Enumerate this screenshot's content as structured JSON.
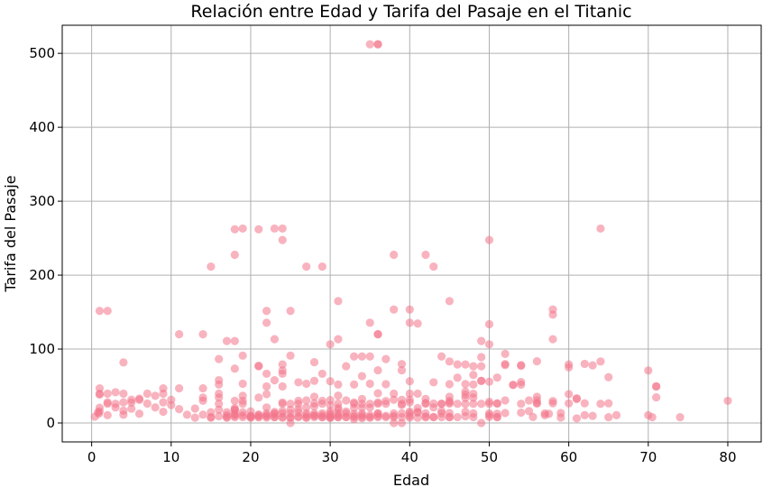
{
  "chart_data": {
    "type": "scatter",
    "title": "Relación entre Edad y Tarifa del Pasaje en el Titanic",
    "xlabel": "Edad",
    "ylabel": "Tarifa del Pasaje",
    "xlim": [
      -3.7,
      84.2
    ],
    "ylim": [
      -25.6,
      538.0
    ],
    "xticks": [
      0,
      10,
      20,
      30,
      40,
      50,
      60,
      70,
      80
    ],
    "yticks": [
      0,
      100,
      200,
      300,
      400,
      500
    ],
    "grid": true,
    "legend": "none",
    "point_color": "#f3758b",
    "point_opacity": 0.55,
    "points": [
      [
        35,
        512.3
      ],
      [
        36,
        512.3
      ],
      [
        36,
        512.3
      ],
      [
        18,
        262
      ],
      [
        19,
        263
      ],
      [
        21,
        262
      ],
      [
        23,
        263
      ],
      [
        24,
        263
      ],
      [
        24,
        247.5
      ],
      [
        50,
        247.5
      ],
      [
        64,
        263
      ],
      [
        18,
        227.5
      ],
      [
        15,
        211.5
      ],
      [
        27,
        211.5
      ],
      [
        29,
        211.5
      ],
      [
        38,
        227.5
      ],
      [
        42,
        227.5
      ],
      [
        43,
        211.5
      ],
      [
        31,
        164.9
      ],
      [
        45,
        164.9
      ],
      [
        40,
        153.5
      ],
      [
        1,
        151.6
      ],
      [
        2,
        151.6
      ],
      [
        22,
        151.6
      ],
      [
        25,
        151.6
      ],
      [
        38,
        153.5
      ],
      [
        58,
        153.5
      ],
      [
        58,
        146.5
      ],
      [
        22,
        135.6
      ],
      [
        35,
        135.6
      ],
      [
        40,
        135.6
      ],
      [
        41,
        134.5
      ],
      [
        50,
        133.6
      ],
      [
        11,
        120
      ],
      [
        14,
        120
      ],
      [
        36,
        120
      ],
      [
        36,
        120
      ],
      [
        23,
        113.3
      ],
      [
        31,
        113.3
      ],
      [
        58,
        113.3
      ],
      [
        17,
        110.9
      ],
      [
        18,
        110.9
      ],
      [
        49,
        110.9
      ],
      [
        50,
        106.4
      ],
      [
        30,
        106.4
      ],
      [
        52,
        93.5
      ],
      [
        19,
        91.1
      ],
      [
        34,
        90
      ],
      [
        44,
        90
      ],
      [
        35,
        90
      ],
      [
        25,
        91.1
      ],
      [
        33,
        90
      ],
      [
        37,
        86.5
      ],
      [
        45,
        83.2
      ],
      [
        56,
        83.5
      ],
      [
        64,
        83.2
      ],
      [
        4,
        81.9
      ],
      [
        16,
        86.5
      ],
      [
        39,
        79.7
      ],
      [
        21,
        77.3
      ],
      [
        24,
        79.2
      ],
      [
        32,
        76.7
      ],
      [
        48,
        76.7
      ],
      [
        47,
        79.2
      ],
      [
        54,
        78.3
      ],
      [
        52,
        79.7
      ],
      [
        60,
        79.2
      ],
      [
        62,
        80
      ],
      [
        63,
        77.9
      ],
      [
        28,
        82.2
      ],
      [
        21,
        76.7
      ],
      [
        60,
        75.2
      ],
      [
        18,
        73.5
      ],
      [
        24,
        71
      ],
      [
        36,
        71.3
      ],
      [
        39,
        71.3
      ],
      [
        48,
        65
      ],
      [
        51,
        61.4
      ],
      [
        65,
        61.9
      ],
      [
        70,
        71
      ],
      [
        24,
        66.6
      ],
      [
        34,
        63.4
      ],
      [
        28,
        57
      ],
      [
        29,
        66.6
      ],
      [
        19,
        53.1
      ],
      [
        22,
        66.6
      ],
      [
        33,
        52
      ],
      [
        35,
        53.1
      ],
      [
        37,
        52.5
      ],
      [
        31,
        52
      ],
      [
        45,
        52.5
      ],
      [
        47,
        52.6
      ],
      [
        23,
        57.8
      ],
      [
        26,
        55
      ],
      [
        40,
        56.5
      ],
      [
        27,
        53.1
      ],
      [
        49,
        57
      ],
      [
        50,
        55.9
      ],
      [
        53,
        51.5
      ],
      [
        54,
        55.4
      ],
      [
        56,
        26.6
      ],
      [
        16,
        57.9
      ],
      [
        16,
        52
      ],
      [
        22,
        49.5
      ],
      [
        24,
        49.5
      ],
      [
        30,
        56.5
      ],
      [
        9,
        46.9
      ],
      [
        11,
        46.9
      ],
      [
        1,
        46.9
      ],
      [
        14,
        46.9
      ],
      [
        16,
        39.7
      ],
      [
        6,
        31.3
      ],
      [
        71,
        49.5
      ],
      [
        71,
        34.7
      ],
      [
        43,
        55
      ],
      [
        44,
        26
      ],
      [
        45,
        27.7
      ],
      [
        38,
        39.7
      ],
      [
        33,
        27.7
      ],
      [
        1,
        39.7
      ],
      [
        1,
        38.5
      ],
      [
        2,
        39.7
      ],
      [
        3,
        41.6
      ],
      [
        4,
        39.7
      ],
      [
        2,
        27.9
      ],
      [
        4,
        27.9
      ],
      [
        5,
        31.4
      ],
      [
        8,
        36.8
      ],
      [
        9,
        39.7
      ],
      [
        10,
        31.4
      ],
      [
        3,
        26
      ],
      [
        3,
        21
      ],
      [
        2,
        26
      ],
      [
        1,
        20.6
      ],
      [
        1,
        15.7
      ],
      [
        0.8,
        14.5
      ],
      [
        0.4,
        8.5
      ],
      [
        0.9,
        12.5
      ],
      [
        2,
        10.5
      ],
      [
        4,
        16.7
      ],
      [
        4,
        11.1
      ],
      [
        5,
        19.3
      ],
      [
        6,
        12.5
      ],
      [
        5,
        27.7
      ],
      [
        6,
        33
      ],
      [
        7,
        39.7
      ],
      [
        7,
        26.3
      ],
      [
        8,
        21.1
      ],
      [
        9,
        15.2
      ],
      [
        9,
        27.9
      ],
      [
        10,
        24.2
      ],
      [
        11,
        18.8
      ],
      [
        12,
        11.2
      ],
      [
        13,
        19.5
      ],
      [
        13,
        7.2
      ],
      [
        14,
        11.2
      ],
      [
        14,
        30.1
      ],
      [
        14,
        34.4
      ],
      [
        15,
        7.2
      ],
      [
        15,
        14.5
      ],
      [
        15,
        8.0
      ],
      [
        16,
        9.2
      ],
      [
        16,
        18
      ],
      [
        16,
        26
      ],
      [
        16,
        34.4
      ],
      [
        17,
        7.9
      ],
      [
        17,
        10.5
      ],
      [
        17,
        14.5
      ],
      [
        17,
        7.2
      ],
      [
        18,
        7.8
      ],
      [
        18,
        11.5
      ],
      [
        18,
        13
      ],
      [
        18,
        18
      ],
      [
        18,
        20.2
      ],
      [
        18,
        9.5
      ],
      [
        18,
        17.8
      ],
      [
        18,
        30
      ],
      [
        19,
        7.9
      ],
      [
        19,
        10.5
      ],
      [
        19,
        26
      ],
      [
        19,
        30
      ],
      [
        19,
        36.8
      ],
      [
        19,
        14.5
      ],
      [
        20,
        7.9
      ],
      [
        20,
        9.8
      ],
      [
        20,
        7.0
      ],
      [
        20,
        15.7
      ],
      [
        20,
        9.2
      ],
      [
        21,
        7.7
      ],
      [
        21,
        11.5
      ],
      [
        21,
        8.4
      ],
      [
        21,
        10.5
      ],
      [
        21,
        34.4
      ],
      [
        22,
        7.3
      ],
      [
        22,
        9.0
      ],
      [
        22,
        10.5
      ],
      [
        22,
        13
      ],
      [
        22,
        21
      ],
      [
        22,
        39
      ],
      [
        23,
        7.8
      ],
      [
        23,
        8.0
      ],
      [
        23,
        13
      ],
      [
        23,
        15
      ],
      [
        23,
        11.5
      ],
      [
        24,
        8.1
      ],
      [
        24,
        13
      ],
      [
        24,
        16.1
      ],
      [
        24,
        7.1
      ],
      [
        24,
        26
      ],
      [
        24,
        27.7
      ],
      [
        25,
        7.1
      ],
      [
        25,
        7.7
      ],
      [
        25,
        13
      ],
      [
        25,
        26
      ],
      [
        25,
        0
      ],
      [
        25,
        17.8
      ],
      [
        26,
        7.9
      ],
      [
        26,
        8.7
      ],
      [
        26,
        14.5
      ],
      [
        26,
        18.8
      ],
      [
        26,
        26
      ],
      [
        26,
        30
      ],
      [
        27,
        6.9
      ],
      [
        27,
        7.8
      ],
      [
        27,
        13
      ],
      [
        27,
        10.5
      ],
      [
        27,
        21
      ],
      [
        27,
        30.5
      ],
      [
        28,
        7.9
      ],
      [
        28,
        9.5
      ],
      [
        28,
        13
      ],
      [
        28,
        10.5
      ],
      [
        28,
        22.5
      ],
      [
        28,
        26.6
      ],
      [
        28,
        35.5
      ],
      [
        29,
        7.8
      ],
      [
        29,
        7.9
      ],
      [
        29,
        10.5
      ],
      [
        29,
        13
      ],
      [
        29,
        26
      ],
      [
        29,
        30
      ],
      [
        30,
        6.9
      ],
      [
        30,
        7.2
      ],
      [
        30,
        8.1
      ],
      [
        30,
        10.5
      ],
      [
        30,
        13
      ],
      [
        30,
        16.1
      ],
      [
        30,
        24.2
      ],
      [
        30,
        31
      ],
      [
        31,
        7.8
      ],
      [
        31,
        7.9
      ],
      [
        31,
        10.5
      ],
      [
        31,
        13
      ],
      [
        31,
        18
      ],
      [
        31,
        20.5
      ],
      [
        31,
        26.3
      ],
      [
        31,
        37
      ],
      [
        32,
        7.9
      ],
      [
        32,
        8.1
      ],
      [
        32,
        13
      ],
      [
        32,
        15.5
      ],
      [
        32,
        30.5
      ],
      [
        33,
        5
      ],
      [
        33,
        7.9
      ],
      [
        33,
        9.5
      ],
      [
        33,
        12.3
      ],
      [
        33,
        26
      ],
      [
        33,
        20.5
      ],
      [
        34,
        6.5
      ],
      [
        34,
        8.1
      ],
      [
        34,
        10.5
      ],
      [
        34,
        13
      ],
      [
        34,
        21
      ],
      [
        34,
        26
      ],
      [
        34,
        32.5
      ],
      [
        35,
        7.1
      ],
      [
        35,
        8.1
      ],
      [
        35,
        10.5
      ],
      [
        35,
        21
      ],
      [
        35,
        26
      ],
      [
        36,
        7.9
      ],
      [
        36,
        9.5
      ],
      [
        36,
        12.9
      ],
      [
        36,
        13
      ],
      [
        36,
        26
      ],
      [
        36,
        27.7
      ],
      [
        36,
        40.1
      ],
      [
        37,
        7.9
      ],
      [
        37,
        9.6
      ],
      [
        37,
        26
      ],
      [
        37,
        29.7
      ],
      [
        38,
        0
      ],
      [
        38,
        7.9
      ],
      [
        38,
        9.6
      ],
      [
        38,
        13
      ],
      [
        38,
        31.4
      ],
      [
        39,
        0
      ],
      [
        39,
        7.9
      ],
      [
        39,
        13
      ],
      [
        39,
        26
      ],
      [
        39,
        24.2
      ],
      [
        39,
        31.3
      ],
      [
        40,
        7.2
      ],
      [
        40,
        9.5
      ],
      [
        40,
        13
      ],
      [
        40,
        15.5
      ],
      [
        40,
        31.4
      ],
      [
        40,
        27.7
      ],
      [
        40,
        39.7
      ],
      [
        41,
        7.1
      ],
      [
        41,
        14.1
      ],
      [
        41,
        15
      ],
      [
        41,
        20.2
      ],
      [
        41,
        39.7
      ],
      [
        42,
        7.6
      ],
      [
        42,
        8.7
      ],
      [
        42,
        13
      ],
      [
        42,
        26
      ],
      [
        42,
        27
      ],
      [
        42,
        32.5
      ],
      [
        43,
        7.9
      ],
      [
        43,
        8.1
      ],
      [
        43,
        21
      ],
      [
        43,
        26.3
      ],
      [
        44,
        7.9
      ],
      [
        44,
        16.1
      ],
      [
        44,
        13
      ],
      [
        44,
        26
      ],
      [
        45,
        7.8
      ],
      [
        45,
        8.1
      ],
      [
        45,
        13.5
      ],
      [
        45,
        26.3
      ],
      [
        45,
        30
      ],
      [
        45,
        35.5
      ],
      [
        46,
        7.9
      ],
      [
        46,
        26
      ],
      [
        46,
        61.2
      ],
      [
        46,
        79.2
      ],
      [
        47,
        9
      ],
      [
        47,
        15
      ],
      [
        47,
        25.6
      ],
      [
        47,
        34
      ],
      [
        47,
        38.5
      ],
      [
        47,
        42.4
      ],
      [
        48,
        7.9
      ],
      [
        48,
        13
      ],
      [
        48,
        25.9
      ],
      [
        48,
        34.4
      ],
      [
        48,
        39.6
      ],
      [
        48,
        52
      ],
      [
        49,
        0
      ],
      [
        49,
        25.9
      ],
      [
        49,
        56.9
      ],
      [
        49,
        76.7
      ],
      [
        49,
        89.1
      ],
      [
        50,
        8.1
      ],
      [
        50,
        10.5
      ],
      [
        50,
        13
      ],
      [
        50,
        26
      ],
      [
        50,
        28.7
      ],
      [
        51,
        7.8
      ],
      [
        51,
        8.1
      ],
      [
        51,
        12.5
      ],
      [
        51,
        26.6
      ],
      [
        51,
        26.3
      ],
      [
        52,
        13.5
      ],
      [
        52,
        30.5
      ],
      [
        52,
        78.3
      ],
      [
        53,
        51.5
      ],
      [
        54,
        14
      ],
      [
        54,
        26
      ],
      [
        54,
        51.9
      ],
      [
        54,
        77.3
      ],
      [
        55,
        16
      ],
      [
        55,
        30.5
      ],
      [
        56,
        26.6
      ],
      [
        56,
        35.5
      ],
      [
        56,
        30.7
      ],
      [
        57,
        10.5
      ],
      [
        57,
        13
      ],
      [
        58,
        26.6
      ],
      [
        58,
        29.7
      ],
      [
        59,
        7.3
      ],
      [
        59,
        13.5
      ],
      [
        60,
        26.5
      ],
      [
        60,
        39
      ],
      [
        61,
        6.2
      ],
      [
        61,
        33.5
      ],
      [
        61,
        32.3
      ],
      [
        62,
        10.5
      ],
      [
        62,
        26.6
      ],
      [
        63,
        9.6
      ],
      [
        64,
        26
      ],
      [
        65,
        7.8
      ],
      [
        65,
        26.6
      ],
      [
        66,
        10.5
      ],
      [
        70,
        10.5
      ],
      [
        70.5,
        7.8
      ],
      [
        71,
        49.5
      ],
      [
        74,
        7.8
      ],
      [
        80,
        30
      ],
      [
        55.5,
        8.1
      ],
      [
        57.5,
        12.4
      ]
    ]
  }
}
